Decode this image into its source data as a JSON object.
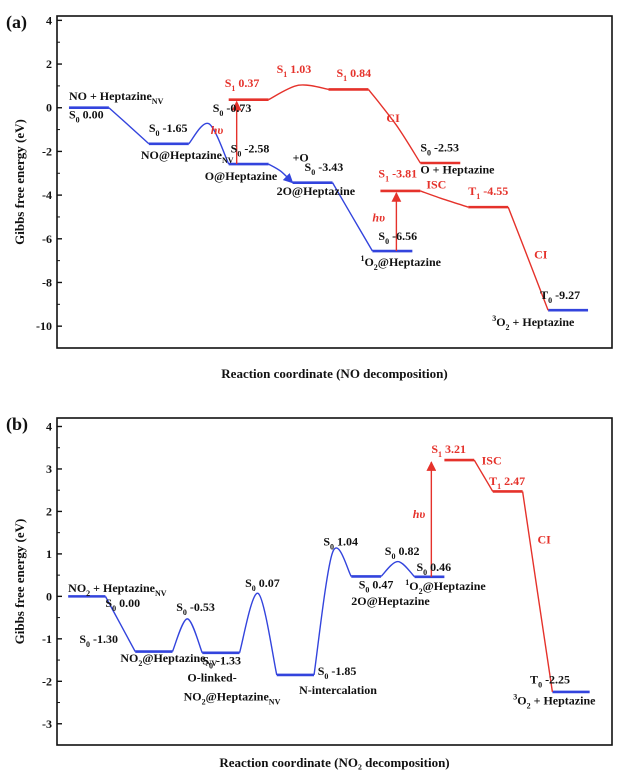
{
  "colors": {
    "blue": "#3344dd",
    "red": "#e5322b",
    "black": "#111111"
  },
  "chart_data": [
    {
      "type": "line",
      "panel_label": "(a)",
      "ylabel": "Gibbs free energy (eV)",
      "xlabel": "Reaction coordinate (NO decomposition)",
      "ylim": [
        -11,
        4.2
      ],
      "yticks": [
        "4",
        "2",
        "0",
        "-2",
        "-4",
        "-6",
        "-8",
        "-10"
      ],
      "ytick_values": [
        4,
        2,
        0,
        -2,
        -4,
        -6,
        -8,
        -10
      ],
      "levels": [
        {
          "x": [
            0,
            1
          ],
          "y": 0.0,
          "color": "blue"
        },
        {
          "x": [
            2,
            3
          ],
          "y": -1.65,
          "color": "blue"
        },
        {
          "x": [
            4,
            5
          ],
          "y": -2.58,
          "color": "blue"
        },
        {
          "x": [
            5.6,
            6.6
          ],
          "y": -3.43,
          "color": "blue"
        },
        {
          "x": [
            7.6,
            8.6
          ],
          "y": -6.56,
          "color": "blue"
        },
        {
          "x": [
            12,
            13
          ],
          "y": -9.27,
          "color": "blue"
        },
        {
          "x": [
            4,
            5
          ],
          "y": 0.37,
          "color": "red"
        },
        {
          "x": [
            6.5,
            7.5
          ],
          "y": 0.84,
          "color": "red"
        },
        {
          "x": [
            8.8,
            9.8
          ],
          "y": -2.53,
          "color": "red"
        },
        {
          "x": [
            7.8,
            8.8
          ],
          "y": -3.81,
          "color": "red"
        },
        {
          "x": [
            10,
            11
          ],
          "y": -4.55,
          "color": "red"
        }
      ],
      "curves": [
        {
          "color": "blue",
          "pts": [
            [
              1,
              0
            ],
            [
              1.5,
              -0.82
            ],
            [
              2,
              -1.65
            ]
          ]
        },
        {
          "color": "blue",
          "pts": [
            [
              3,
              -1.65
            ],
            [
              3.5,
              -0.73
            ],
            [
              4,
              -2.58
            ]
          ],
          "smooth": true
        },
        {
          "color": "blue",
          "pts": [
            [
              5,
              -2.58
            ],
            [
              5.3,
              -2.9
            ],
            [
              5.6,
              -3.43
            ]
          ],
          "arrow": true
        },
        {
          "color": "blue",
          "pts": [
            [
              6.6,
              -3.43
            ],
            [
              7.1,
              -5.0
            ],
            [
              7.6,
              -6.56
            ]
          ]
        },
        {
          "color": "red",
          "pts": [
            [
              5,
              0.37
            ],
            [
              5.75,
              1.03
            ],
            [
              6.5,
              0.84
            ]
          ],
          "smooth": true
        },
        {
          "color": "red",
          "pts": [
            [
              7.5,
              0.84
            ],
            [
              8.2,
              -0.8
            ],
            [
              8.8,
              -2.53
            ]
          ]
        },
        {
          "color": "red",
          "pts": [
            [
              8.8,
              -3.81
            ],
            [
              9.4,
              -4.2
            ],
            [
              10,
              -4.55
            ]
          ]
        },
        {
          "color": "red",
          "pts": [
            [
              11,
              -4.55
            ],
            [
              11.5,
              -6.9
            ],
            [
              12,
              -9.27
            ]
          ]
        }
      ],
      "arrows": [
        {
          "x": 4.2,
          "y1": -2.58,
          "y2": 0.37
        },
        {
          "x": 8.2,
          "y1": -6.56,
          "y2": -3.81
        }
      ],
      "labels": [
        {
          "x": 0.0,
          "y": 0.35,
          "parts": [
            "NO + Heptazine",
            "NV"
          ],
          "mode": "sub",
          "color": "black"
        },
        {
          "x": 0.0,
          "y": -0.5,
          "parts": [
            "S",
            "0",
            " 0.00"
          ],
          "mode": "state",
          "color": "black"
        },
        {
          "x": 2.0,
          "y": -1.1,
          "parts": [
            "S",
            "0",
            " -1.65"
          ],
          "mode": "state",
          "color": "black"
        },
        {
          "x": 1.8,
          "y": -2.35,
          "parts": [
            "NO@Heptazine",
            "NV"
          ],
          "mode": "sub",
          "color": "black"
        },
        {
          "x": 3.6,
          "y": -0.2,
          "parts": [
            "S",
            "0",
            " -0.73"
          ],
          "mode": "state",
          "color": "black"
        },
        {
          "x": 4.05,
          "y": -2.05,
          "parts": [
            "S",
            "0",
            "   -2.58"
          ],
          "mode": "state",
          "color": "black"
        },
        {
          "x": 3.4,
          "y": -3.3,
          "parts": [
            "O@Heptazine"
          ],
          "mode": "plain",
          "color": "black"
        },
        {
          "x": 5.6,
          "y": -2.45,
          "parts": [
            "+O"
          ],
          "mode": "plain",
          "color": "black"
        },
        {
          "x": 5.9,
          "y": -2.9,
          "parts": [
            "S",
            "0",
            " -3.43"
          ],
          "mode": "state",
          "color": "black"
        },
        {
          "x": 5.2,
          "y": -4.0,
          "parts": [
            "2O@Heptazine"
          ],
          "mode": "plain",
          "color": "black"
        },
        {
          "x": 7.75,
          "y": -6.05,
          "parts": [
            "S",
            "0",
            "   -6.56"
          ],
          "mode": "state",
          "color": "black"
        },
        {
          "x": 7.3,
          "y": -7.25,
          "parts": [
            "1",
            "O",
            "2",
            "@Heptazine"
          ],
          "mode": "o2",
          "color": "black"
        },
        {
          "x": 8.8,
          "y": -2.0,
          "parts": [
            "S",
            "0",
            " -2.53"
          ],
          "mode": "state",
          "color": "black"
        },
        {
          "x": 8.8,
          "y": -3.0,
          "parts": [
            "O + Heptazine"
          ],
          "mode": "plain",
          "color": "black"
        },
        {
          "x": 11.8,
          "y": -8.75,
          "parts": [
            "T",
            "0",
            " -9.27"
          ],
          "mode": "state",
          "color": "black"
        },
        {
          "x": 10.6,
          "y": -10.0,
          "parts": [
            "3",
            "O",
            "2",
            " + Heptazine"
          ],
          "mode": "o2",
          "color": "black"
        },
        {
          "x": 3.9,
          "y": 0.95,
          "parts": [
            "S",
            "1",
            " 0.37"
          ],
          "mode": "state",
          "color": "red"
        },
        {
          "x": 5.2,
          "y": 1.6,
          "parts": [
            "S",
            "1",
            " 1.03"
          ],
          "mode": "state",
          "color": "red"
        },
        {
          "x": 6.7,
          "y": 1.4,
          "parts": [
            "S",
            "1",
            " 0.84"
          ],
          "mode": "state",
          "color": "red"
        },
        {
          "x": 7.95,
          "y": -0.65,
          "parts": [
            "CI"
          ],
          "mode": "plain",
          "color": "red"
        },
        {
          "x": 7.75,
          "y": -3.2,
          "parts": [
            "S",
            "1",
            " -3.81"
          ],
          "mode": "state",
          "color": "red"
        },
        {
          "x": 8.95,
          "y": -3.7,
          "parts": [
            "ISC"
          ],
          "mode": "plain",
          "color": "red"
        },
        {
          "x": 10.0,
          "y": -4.0,
          "parts": [
            "T",
            "1",
            " -4.55"
          ],
          "mode": "state",
          "color": "red"
        },
        {
          "x": 11.65,
          "y": -6.9,
          "parts": [
            "CI"
          ],
          "mode": "plain",
          "color": "red"
        },
        {
          "x": 3.55,
          "y": -1.2,
          "parts": [
            "hυ"
          ],
          "mode": "italic",
          "color": "red"
        },
        {
          "x": 7.6,
          "y": -5.2,
          "parts": [
            "hυ"
          ],
          "mode": "italic",
          "color": "red"
        }
      ]
    },
    {
      "type": "line",
      "panel_label": "(b)",
      "ylabel": "Gibbs free energy (eV)",
      "xlabel": "Reaction coordinate (NO₂ decomposition)",
      "ylim": [
        -3.5,
        4.2
      ],
      "yticks": [
        "4",
        "3",
        "2",
        "1",
        "0",
        "-1",
        "-2",
        "-3"
      ],
      "ytick_values": [
        4,
        3,
        2,
        1,
        0,
        -1,
        -2,
        -3
      ],
      "levels": [
        {
          "x": [
            0,
            1
          ],
          "y": 0.0,
          "color": "blue"
        },
        {
          "x": [
            1.8,
            2.8
          ],
          "y": -1.3,
          "color": "blue"
        },
        {
          "x": [
            3.6,
            4.6
          ],
          "y": -1.33,
          "color": "blue"
        },
        {
          "x": [
            5.6,
            6.6
          ],
          "y": -1.85,
          "color": "blue"
        },
        {
          "x": [
            7.6,
            8.4
          ],
          "y": 0.47,
          "color": "blue"
        },
        {
          "x": [
            9.3,
            10.1
          ],
          "y": 0.46,
          "color": "blue"
        },
        {
          "x": [
            13.0,
            14.0
          ],
          "y": -2.25,
          "color": "blue"
        },
        {
          "x": [
            10.1,
            10.9
          ],
          "y": 3.21,
          "color": "red"
        },
        {
          "x": [
            11.4,
            12.2
          ],
          "y": 2.47,
          "color": "red"
        }
      ],
      "curves": [
        {
          "color": "blue",
          "pts": [
            [
              1,
              0
            ],
            [
              1.4,
              -0.65
            ],
            [
              1.8,
              -1.3
            ]
          ]
        },
        {
          "color": "blue",
          "pts": [
            [
              2.8,
              -1.3
            ],
            [
              3.2,
              -0.53
            ],
            [
              3.6,
              -1.33
            ]
          ],
          "smooth": true
        },
        {
          "color": "blue",
          "pts": [
            [
              4.6,
              -1.33
            ],
            [
              5.1,
              0.07
            ],
            [
              5.6,
              -1.85
            ]
          ],
          "smooth": true
        },
        {
          "color": "blue",
          "pts": [
            [
              6.6,
              -1.85
            ],
            [
              7.1,
              1.04
            ],
            [
              7.6,
              0.47
            ]
          ],
          "smooth": true
        },
        {
          "color": "blue",
          "pts": [
            [
              8.4,
              0.47
            ],
            [
              8.85,
              0.82
            ],
            [
              9.3,
              0.46
            ]
          ],
          "smooth": true
        },
        {
          "color": "red",
          "pts": [
            [
              10.9,
              3.21
            ],
            [
              11.15,
              2.84
            ],
            [
              11.4,
              2.47
            ]
          ]
        },
        {
          "color": "red",
          "pts": [
            [
              12.2,
              2.47
            ],
            [
              12.6,
              0.1
            ],
            [
              13.0,
              -2.25
            ]
          ]
        }
      ],
      "arrows": [
        {
          "x": 9.75,
          "y1": 0.46,
          "y2": 3.21
        }
      ],
      "labels": [
        {
          "x": 0.0,
          "y": 0.1,
          "parts": [
            "NO",
            "2",
            " + Heptazine",
            "NV"
          ],
          "mode": "no2",
          "color": "black"
        },
        {
          "x": 1.0,
          "y": -0.25,
          "parts": [
            "S",
            "0",
            " 0.00"
          ],
          "mode": "state",
          "color": "black"
        },
        {
          "x": 0.3,
          "y": -1.1,
          "parts": [
            "S",
            "0",
            " -1.30"
          ],
          "mode": "state",
          "color": "black"
        },
        {
          "x": 1.4,
          "y": -1.55,
          "parts": [
            "NO",
            "2",
            "@Heptazine",
            "NV"
          ],
          "mode": "no2",
          "color": "black"
        },
        {
          "x": 2.9,
          "y": -0.35,
          "parts": [
            "S",
            "0",
            " -0.53"
          ],
          "mode": "state",
          "color": "black"
        },
        {
          "x": 3.6,
          "y": -1.6,
          "parts": [
            "S",
            "0",
            " -1.33"
          ],
          "mode": "state",
          "color": "black"
        },
        {
          "x": 3.2,
          "y": -2.0,
          "parts": [
            "O-linked-"
          ],
          "mode": "plain",
          "color": "black"
        },
        {
          "x": 3.1,
          "y": -2.45,
          "parts": [
            "NO",
            "2",
            "@Heptazine",
            "NV"
          ],
          "mode": "no2",
          "color": "black"
        },
        {
          "x": 4.75,
          "y": 0.22,
          "parts": [
            "S",
            "0",
            " 0.07"
          ],
          "mode": "state",
          "color": "black"
        },
        {
          "x": 6.7,
          "y": -1.85,
          "parts": [
            "S",
            "0",
            " -1.85"
          ],
          "mode": "state",
          "color": "black"
        },
        {
          "x": 6.2,
          "y": -2.3,
          "parts": [
            "N-intercalation"
          ],
          "mode": "plain",
          "color": "black"
        },
        {
          "x": 6.85,
          "y": 1.2,
          "parts": [
            "S",
            "0",
            " 1.04"
          ],
          "mode": "state",
          "color": "black"
        },
        {
          "x": 7.8,
          "y": 0.18,
          "parts": [
            "S",
            "0",
            " 0.47"
          ],
          "mode": "state",
          "color": "black"
        },
        {
          "x": 7.6,
          "y": -0.2,
          "parts": [
            "2O@Heptazine"
          ],
          "mode": "plain",
          "color": "black"
        },
        {
          "x": 8.5,
          "y": 0.97,
          "parts": [
            "S",
            "0",
            " 0.82"
          ],
          "mode": "state",
          "color": "black"
        },
        {
          "x": 9.35,
          "y": 0.6,
          "parts": [
            "S",
            "0",
            "   0.46"
          ],
          "mode": "state",
          "color": "black"
        },
        {
          "x": 9.05,
          "y": 0.15,
          "parts": [
            "1",
            "O",
            "2",
            "@Heptazine"
          ],
          "mode": "o2",
          "color": "black"
        },
        {
          "x": 12.4,
          "y": -2.05,
          "parts": [
            "T",
            "0",
            " -2.25"
          ],
          "mode": "state",
          "color": "black"
        },
        {
          "x": 11.95,
          "y": -2.55,
          "parts": [
            "3",
            "O",
            "2",
            " + Heptazine"
          ],
          "mode": "o2",
          "color": "black"
        },
        {
          "x": 9.75,
          "y": 3.38,
          "parts": [
            "S",
            "1",
            " 3.21"
          ],
          "mode": "state",
          "color": "red"
        },
        {
          "x": 11.1,
          "y": 3.1,
          "parts": [
            "ISC"
          ],
          "mode": "plain",
          "color": "red"
        },
        {
          "x": 11.3,
          "y": 2.62,
          "parts": [
            "T",
            "1",
            " 2.47"
          ],
          "mode": "state",
          "color": "red"
        },
        {
          "x": 12.6,
          "y": 1.25,
          "parts": [
            "CI"
          ],
          "mode": "plain",
          "color": "red"
        },
        {
          "x": 9.25,
          "y": 1.85,
          "parts": [
            "hυ"
          ],
          "mode": "italic",
          "color": "red"
        }
      ]
    }
  ]
}
